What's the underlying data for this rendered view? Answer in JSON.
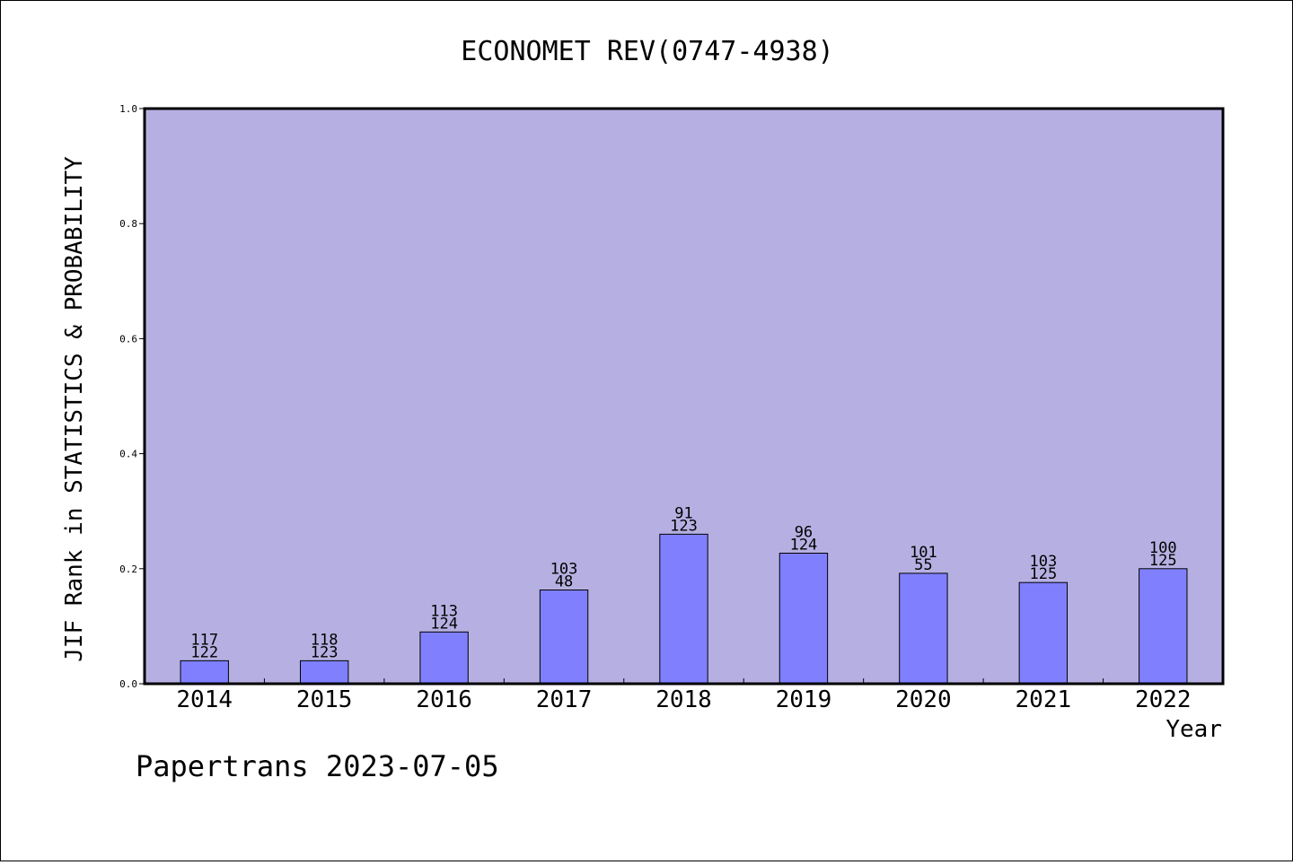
{
  "chart_data": {
    "type": "bar",
    "title": "ECONOMET REV(0747-4938)",
    "xlabel": "Year",
    "ylabel": "JIF Rank in STATISTICS & PROBABILITY",
    "ylim": [
      0,
      1.0
    ],
    "yticks": [
      "0.0",
      "0.2",
      "0.4",
      "0.6",
      "0.8",
      "1.0"
    ],
    "categories": [
      "2014",
      "2015",
      "2016",
      "2017",
      "2018",
      "2019",
      "2020",
      "2021",
      "2022"
    ],
    "values": [
      0.04,
      0.04,
      0.09,
      0.163,
      0.26,
      0.227,
      0.192,
      0.176,
      0.2
    ],
    "label_top": [
      "117",
      "118",
      "113",
      "103",
      "91",
      "96",
      "101",
      "103",
      "100"
    ],
    "label_bottom": [
      "122",
      "123",
      "124",
      "48",
      "123",
      "124",
      "55",
      "125",
      "125"
    ],
    "grid": false,
    "colors": {
      "plot_background": "#b6b0e2",
      "bar_fill": "#8080ff",
      "bar_stroke": "#000000"
    }
  },
  "footer": "Papertrans 2023-07-05"
}
